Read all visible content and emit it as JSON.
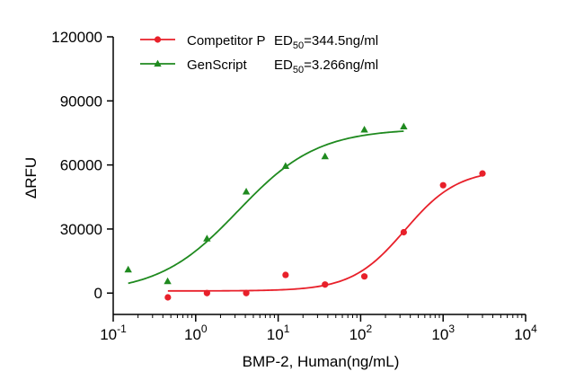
{
  "chart_data": {
    "type": "scatter",
    "xlabel": "BMP-2, Human(ng/mL)",
    "ylabel": "ΔRFU",
    "x_scale": "log10",
    "xlim": [
      0.1,
      10000
    ],
    "ylim": [
      -10000,
      120000
    ],
    "x_ticks": [
      {
        "value": 0.1,
        "base": "10",
        "exp": "-1"
      },
      {
        "value": 1,
        "base": "10",
        "exp": "0"
      },
      {
        "value": 10,
        "base": "10",
        "exp": "1"
      },
      {
        "value": 100,
        "base": "10",
        "exp": "2"
      },
      {
        "value": 1000,
        "base": "10",
        "exp": "3"
      },
      {
        "value": 10000,
        "base": "10",
        "exp": "4"
      }
    ],
    "y_ticks": [
      {
        "value": 0,
        "label": "0"
      },
      {
        "value": 30000,
        "label": "30000"
      },
      {
        "value": 60000,
        "label": "60000"
      },
      {
        "value": 90000,
        "label": "90000"
      },
      {
        "value": 120000,
        "label": "120000"
      }
    ],
    "legend_position": "top-left",
    "series": [
      {
        "name": "Competitor P",
        "ed_prefix": "ED",
        "ed_sub": "50",
        "ed_value": "=344.5ng/ml",
        "color": "#e8202a",
        "marker": "circle",
        "x": [
          0.46,
          1.37,
          4.1,
          12.3,
          37,
          111,
          333,
          1000,
          3000
        ],
        "y": [
          -2000,
          0,
          0,
          8500,
          4000,
          7800,
          28500,
          50500,
          56000
        ],
        "fit": {
          "bottom": 1000,
          "top": 58000,
          "ec50": 344.5,
          "hill": 1.35
        }
      },
      {
        "name": "GenScript",
        "ed_prefix": "ED",
        "ed_sub": "50",
        "ed_value": "=3.266ng/ml",
        "color": "#1f8a1f",
        "marker": "triangle",
        "x": [
          0.152,
          0.457,
          1.37,
          4.1,
          12.3,
          37,
          111,
          333
        ],
        "y": [
          11000,
          5500,
          25500,
          47500,
          59500,
          64000,
          76500,
          78000
        ],
        "fit": {
          "bottom": 0,
          "top": 77000,
          "ec50": 3.266,
          "hill": 0.9
        }
      }
    ]
  }
}
